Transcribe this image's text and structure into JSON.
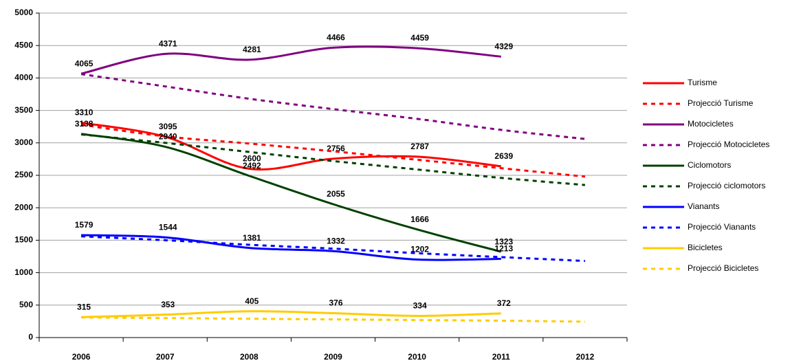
{
  "chart_data": {
    "type": "line",
    "categories": [
      "2006",
      "2007",
      "2008",
      "2009",
      "2010",
      "2011",
      "2012"
    ],
    "ylim": [
      0,
      5000
    ],
    "yticks": [
      0,
      500,
      1000,
      1500,
      2000,
      2500,
      3000,
      3500,
      4000,
      4500,
      5000
    ],
    "grid": true,
    "legend": "right",
    "series": [
      {
        "name": "Turisme",
        "color": "#ff0000",
        "dashed": false,
        "values": [
          3310,
          3095,
          2600,
          2756,
          2787,
          2639,
          null
        ]
      },
      {
        "name": "Projecció Turisme",
        "color": "#ff0000",
        "dashed": true,
        "values": [
          3280,
          3100,
          2990,
          2870,
          2740,
          2610,
          2480
        ]
      },
      {
        "name": "Motocicletes",
        "color": "#800080",
        "dashed": false,
        "values": [
          4065,
          4371,
          4281,
          4466,
          4459,
          4329,
          null
        ]
      },
      {
        "name": "Projecció Motocicletes",
        "color": "#800080",
        "dashed": true,
        "values": [
          4060,
          3870,
          3680,
          3520,
          3370,
          3200,
          3060
        ]
      },
      {
        "name": "Ciclomotors",
        "color": "#004000",
        "dashed": false,
        "values": [
          3138,
          2940,
          2492,
          2055,
          1666,
          1323,
          null
        ]
      },
      {
        "name": "Projecció ciclomotors",
        "color": "#004000",
        "dashed": true,
        "values": [
          3130,
          3000,
          2860,
          2720,
          2590,
          2460,
          2350
        ]
      },
      {
        "name": "Vianants",
        "color": "#0000ff",
        "dashed": false,
        "values": [
          1579,
          1544,
          1381,
          1332,
          1202,
          1213,
          null
        ]
      },
      {
        "name": "Projecció Vianants",
        "color": "#0000ff",
        "dashed": true,
        "values": [
          1560,
          1500,
          1430,
          1370,
          1300,
          1240,
          1180
        ]
      },
      {
        "name": "Bicicletes",
        "color": "#ffcc00",
        "dashed": false,
        "values": [
          315,
          353,
          405,
          376,
          334,
          372,
          null
        ]
      },
      {
        "name": "Projecció Bicicletes",
        "color": "#ffcc00",
        "dashed": true,
        "values": [
          310,
          300,
          290,
          280,
          270,
          260,
          245
        ]
      }
    ]
  }
}
